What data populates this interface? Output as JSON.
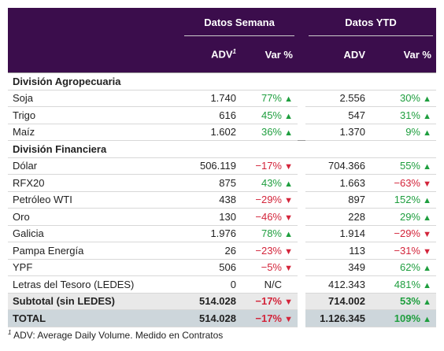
{
  "header": {
    "groups": [
      "Datos Semana",
      "Datos YTD"
    ],
    "columns": [
      {
        "text": "ADV",
        "sup": "1"
      },
      {
        "text": "Var %"
      },
      {
        "text": "ADV"
      },
      {
        "text": "Var %"
      }
    ]
  },
  "sections": [
    {
      "title": "División Agropecuaria",
      "rows": [
        [
          "Soja",
          "1.740",
          "77%",
          "2.556",
          "30%"
        ],
        [
          "Trigo",
          "616",
          "45%",
          "547",
          "31%"
        ],
        [
          "Maíz",
          "1.602",
          "36%",
          "1.370",
          "9%"
        ]
      ]
    },
    {
      "title": "División Financiera",
      "rows": [
        [
          "Dólar",
          "506.119",
          "−17%",
          "704.366",
          "55%"
        ],
        [
          "RFX20",
          "875",
          "43%",
          "1.663",
          "−63%"
        ],
        [
          "Petróleo WTI",
          "438",
          "−29%",
          "897",
          "152%"
        ],
        [
          "Oro",
          "130",
          "−46%",
          "228",
          "29%"
        ],
        [
          "Galicia",
          "1.976",
          "78%",
          "1.914",
          "−29%"
        ],
        [
          "Pampa Energía",
          "26",
          "−23%",
          "113",
          "−31%"
        ],
        [
          "YPF",
          "506",
          "−5%",
          "349",
          "62%"
        ],
        [
          "Letras del Tesoro (LEDES)",
          "0",
          "N/C",
          "412.343",
          "481%"
        ]
      ]
    }
  ],
  "subtotal": [
    "Subtotal (sin LEDES)",
    "514.028",
    "−17%",
    "714.002",
    "53%"
  ],
  "total": [
    "TOTAL",
    "514.028",
    "−17%",
    "1.126.345",
    "109%"
  ],
  "footnote": {
    "sup": "1",
    "text": "ADV: Average Daily Volume. Medido en Contratos"
  }
}
